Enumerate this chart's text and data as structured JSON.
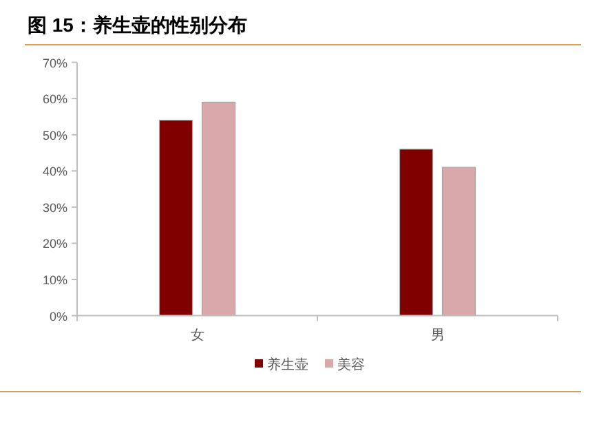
{
  "chart_data": {
    "type": "bar",
    "title": "图 15：养生壶的性别分布",
    "categories": [
      "女",
      "男"
    ],
    "series": [
      {
        "name": "养生壶",
        "color": "#800000",
        "values": [
          54,
          46
        ]
      },
      {
        "name": "美容",
        "color": "#d9a8a8",
        "values": [
          59,
          41
        ]
      }
    ],
    "ylim": [
      0,
      70
    ],
    "yticks": [
      {
        "value": 0,
        "label": "0%"
      },
      {
        "value": 10,
        "label": "10%"
      },
      {
        "value": 20,
        "label": "20%"
      },
      {
        "value": 30,
        "label": "30%"
      },
      {
        "value": 40,
        "label": "40%"
      },
      {
        "value": 50,
        "label": "50%"
      },
      {
        "value": 60,
        "label": "60%"
      },
      {
        "value": 70,
        "label": "70%"
      }
    ],
    "legend": "bottom"
  }
}
